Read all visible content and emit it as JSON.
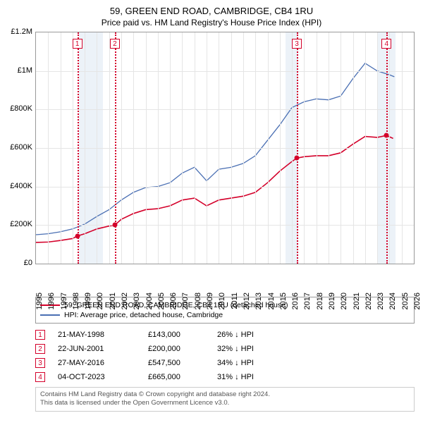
{
  "title": "59, GREEN END ROAD, CAMBRIDGE, CB4 1RU",
  "subtitle": "Price paid vs. HM Land Registry's House Price Index (HPI)",
  "chart": {
    "type": "line",
    "xlim": [
      1995,
      2026
    ],
    "ylim": [
      0,
      1200000
    ],
    "xtick_step": 1,
    "ytick_step": 200000,
    "ytick_labels": [
      "£0",
      "£200K",
      "£400K",
      "£600K",
      "£800K",
      "£1M",
      "£1.2M"
    ],
    "grid_color": "#e5e5e5",
    "border_color": "#999999",
    "background_color": "#ffffff",
    "shaded_xregions": [
      {
        "from": 1998.5,
        "to": 2000.5,
        "color": "#dce7f3"
      },
      {
        "from": 2015.5,
        "to": 2016.5,
        "color": "#dce7f3"
      },
      {
        "from": 2023.0,
        "to": 2024.5,
        "color": "#dce7f3"
      }
    ],
    "series": [
      {
        "name": "property",
        "label": "59, GREEN END ROAD, CAMBRIDGE, CB4 1RU (detached house)",
        "color": "#d4002a",
        "line_width": 1.6,
        "data": [
          [
            1995,
            110000
          ],
          [
            1996,
            112000
          ],
          [
            1997,
            120000
          ],
          [
            1998,
            130000
          ],
          [
            1998.39,
            143000
          ],
          [
            1999,
            155000
          ],
          [
            2000,
            180000
          ],
          [
            2001,
            195000
          ],
          [
            2001.47,
            200000
          ],
          [
            2002,
            230000
          ],
          [
            2003,
            260000
          ],
          [
            2004,
            280000
          ],
          [
            2005,
            285000
          ],
          [
            2006,
            300000
          ],
          [
            2007,
            330000
          ],
          [
            2008,
            340000
          ],
          [
            2009,
            300000
          ],
          [
            2010,
            330000
          ],
          [
            2011,
            340000
          ],
          [
            2012,
            350000
          ],
          [
            2013,
            370000
          ],
          [
            2014,
            420000
          ],
          [
            2015,
            480000
          ],
          [
            2016,
            530000
          ],
          [
            2016.4,
            547500
          ],
          [
            2017,
            555000
          ],
          [
            2018,
            560000
          ],
          [
            2019,
            560000
          ],
          [
            2020,
            575000
          ],
          [
            2021,
            620000
          ],
          [
            2022,
            660000
          ],
          [
            2023,
            655000
          ],
          [
            2023.76,
            665000
          ],
          [
            2024.3,
            650000
          ]
        ]
      },
      {
        "name": "hpi",
        "label": "HPI: Average price, detached house, Cambridge",
        "color": "#4a6fb3",
        "line_width": 1.3,
        "data": [
          [
            1995,
            150000
          ],
          [
            1996,
            155000
          ],
          [
            1997,
            165000
          ],
          [
            1998,
            180000
          ],
          [
            1999,
            205000
          ],
          [
            2000,
            245000
          ],
          [
            2001,
            280000
          ],
          [
            2002,
            330000
          ],
          [
            2003,
            370000
          ],
          [
            2004,
            395000
          ],
          [
            2005,
            400000
          ],
          [
            2006,
            420000
          ],
          [
            2007,
            470000
          ],
          [
            2008,
            500000
          ],
          [
            2009,
            430000
          ],
          [
            2010,
            490000
          ],
          [
            2011,
            500000
          ],
          [
            2012,
            520000
          ],
          [
            2013,
            560000
          ],
          [
            2014,
            640000
          ],
          [
            2015,
            720000
          ],
          [
            2016,
            810000
          ],
          [
            2017,
            840000
          ],
          [
            2018,
            855000
          ],
          [
            2019,
            850000
          ],
          [
            2020,
            870000
          ],
          [
            2021,
            960000
          ],
          [
            2022,
            1040000
          ],
          [
            2023,
            1000000
          ],
          [
            2024,
            980000
          ],
          [
            2024.4,
            970000
          ]
        ]
      }
    ],
    "events": [
      {
        "n": "1",
        "x": 1998.39,
        "date": "21-MAY-1998",
        "price": "£143,000",
        "delta": "26% ↓ HPI",
        "color": "#d4002a"
      },
      {
        "n": "2",
        "x": 2001.47,
        "date": "22-JUN-2001",
        "price": "£200,000",
        "delta": "32% ↓ HPI",
        "color": "#d4002a"
      },
      {
        "n": "3",
        "x": 2016.4,
        "date": "27-MAY-2016",
        "price": "£547,500",
        "delta": "34% ↓ HPI",
        "color": "#d4002a"
      },
      {
        "n": "4",
        "x": 2023.76,
        "date": "04-OCT-2023",
        "price": "£665,000",
        "delta": "31% ↓ HPI",
        "color": "#d4002a"
      }
    ],
    "event_marker_top_y": 1140000
  },
  "footer": {
    "line1": "Contains HM Land Registry data © Crown copyright and database right 2024.",
    "line2": "This data is licensed under the Open Government Licence v3.0."
  }
}
